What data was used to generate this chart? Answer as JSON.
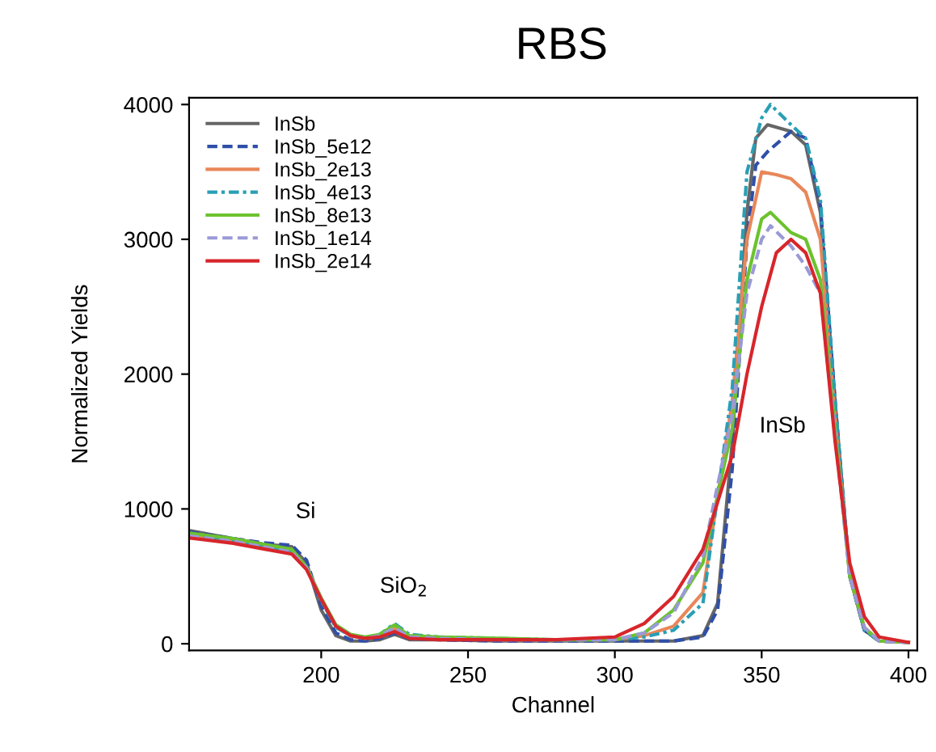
{
  "chart_data": {
    "type": "line",
    "title": "RBS",
    "xlabel": "Channel",
    "ylabel": "Normalized Yields",
    "xlim": [
      155,
      403
    ],
    "ylim": [
      -50,
      4050
    ],
    "xticks": [
      200,
      250,
      300,
      350,
      400
    ],
    "yticks": [
      0,
      1000,
      2000,
      3000,
      4000
    ],
    "grid": false,
    "legend": "top left",
    "marker": "none",
    "annotations": [
      "Si",
      "SiO$_{2}$",
      "InSb"
    ],
    "series": [
      {
        "name": "InSb",
        "color": "#666666",
        "line_style": "solid",
        "x": [
          155,
          170,
          180,
          190,
          195,
          200,
          205,
          210,
          215,
          220,
          225,
          230,
          240,
          260,
          280,
          300,
          320,
          330,
          335,
          340,
          345,
          348,
          352,
          360,
          365,
          370,
          375,
          380,
          385,
          390,
          400
        ],
        "values": [
          840,
          780,
          740,
          720,
          600,
          250,
          60,
          20,
          20,
          30,
          70,
          30,
          30,
          20,
          20,
          20,
          20,
          60,
          300,
          1500,
          3200,
          3750,
          3850,
          3800,
          3700,
          3200,
          1800,
          500,
          100,
          20,
          10
        ]
      },
      {
        "name": "InSb_5e12",
        "color": "#2f4fa8",
        "line_style": "dashed",
        "x": [
          155,
          170,
          180,
          190,
          195,
          200,
          205,
          210,
          215,
          220,
          225,
          230,
          240,
          260,
          280,
          300,
          320,
          330,
          335,
          340,
          345,
          348,
          352,
          360,
          365,
          370,
          375,
          380,
          385,
          390,
          400
        ],
        "values": [
          830,
          780,
          750,
          730,
          620,
          280,
          80,
          30,
          20,
          40,
          80,
          40,
          30,
          20,
          20,
          20,
          20,
          50,
          250,
          1300,
          3000,
          3550,
          3650,
          3800,
          3750,
          3250,
          1800,
          500,
          100,
          20,
          10
        ]
      },
      {
        "name": "InSb_2e13",
        "color": "#e8875a",
        "line_style": "solid",
        "x": [
          155,
          170,
          180,
          190,
          195,
          200,
          205,
          210,
          215,
          220,
          225,
          230,
          240,
          260,
          280,
          300,
          310,
          320,
          330,
          340,
          345,
          350,
          355,
          360,
          365,
          370,
          375,
          380,
          385,
          390,
          400
        ],
        "values": [
          800,
          760,
          720,
          680,
          560,
          330,
          130,
          60,
          40,
          60,
          110,
          50,
          40,
          30,
          30,
          30,
          60,
          130,
          380,
          1800,
          3000,
          3500,
          3480,
          3450,
          3350,
          3000,
          1700,
          500,
          120,
          20,
          10
        ]
      },
      {
        "name": "InSb_4e13",
        "color": "#2a9fb5",
        "line_style": "dashdot",
        "x": [
          155,
          170,
          180,
          190,
          195,
          200,
          205,
          210,
          215,
          220,
          225,
          230,
          240,
          260,
          280,
          300,
          310,
          320,
          330,
          340,
          345,
          350,
          353,
          360,
          365,
          370,
          375,
          380,
          385,
          390
        ],
        "values": [
          810,
          770,
          730,
          690,
          570,
          320,
          120,
          60,
          40,
          70,
          150,
          70,
          50,
          40,
          30,
          30,
          50,
          100,
          300,
          1900,
          3500,
          3900,
          4000,
          3850,
          3750,
          3300,
          1800,
          500,
          100,
          20
        ]
      },
      {
        "name": "InSb_8e13",
        "color": "#6cc22e",
        "line_style": "solid",
        "x": [
          155,
          170,
          180,
          190,
          195,
          200,
          205,
          210,
          215,
          220,
          225,
          230,
          240,
          260,
          280,
          300,
          310,
          320,
          330,
          340,
          345,
          350,
          353,
          360,
          365,
          370,
          375,
          380,
          385,
          390,
          400
        ],
        "values": [
          820,
          780,
          740,
          700,
          570,
          340,
          140,
          70,
          50,
          70,
          140,
          60,
          50,
          40,
          30,
          30,
          80,
          250,
          600,
          1600,
          2700,
          3150,
          3200,
          3050,
          3000,
          2700,
          1600,
          500,
          120,
          20,
          10
        ]
      },
      {
        "name": "InSb_1e14",
        "color": "#9a9ad8",
        "line_style": "dashed",
        "x": [
          155,
          170,
          180,
          190,
          195,
          200,
          205,
          210,
          215,
          220,
          225,
          230,
          240,
          260,
          280,
          300,
          310,
          320,
          330,
          340,
          345,
          350,
          353,
          360,
          365,
          370,
          375,
          380,
          385,
          390,
          400
        ],
        "values": [
          800,
          760,
          720,
          680,
          560,
          330,
          130,
          60,
          40,
          60,
          120,
          50,
          40,
          30,
          30,
          30,
          80,
          230,
          650,
          1700,
          2600,
          3000,
          3100,
          2950,
          2800,
          2600,
          1550,
          500,
          120,
          20,
          10
        ]
      },
      {
        "name": "InSb_2e14",
        "color": "#d7262b",
        "line_style": "solid",
        "x": [
          155,
          170,
          180,
          190,
          195,
          200,
          205,
          210,
          215,
          220,
          225,
          230,
          240,
          260,
          280,
          300,
          310,
          320,
          330,
          340,
          345,
          350,
          355,
          360,
          365,
          370,
          375,
          380,
          385,
          390,
          400
        ],
        "values": [
          785,
          745,
          705,
          665,
          550,
          330,
          130,
          60,
          40,
          50,
          90,
          40,
          30,
          30,
          30,
          50,
          150,
          350,
          700,
          1400,
          2000,
          2500,
          2900,
          3000,
          2900,
          2600,
          1500,
          600,
          200,
          50,
          10
        ]
      }
    ]
  }
}
